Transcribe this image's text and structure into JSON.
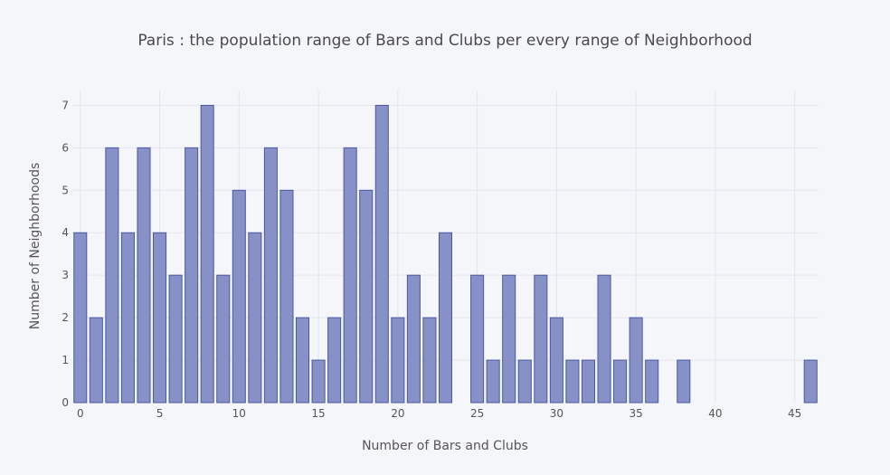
{
  "chart_data": {
    "type": "bar",
    "title": "Paris : the population range of Bars and Clubs per every range of Neighborhood",
    "xlabel": "Number of Bars and Clubs",
    "ylabel": "Number of Neighborhoods",
    "x": [
      0,
      1,
      2,
      3,
      4,
      5,
      6,
      7,
      8,
      9,
      10,
      11,
      12,
      13,
      14,
      15,
      16,
      17,
      18,
      19,
      20,
      21,
      22,
      23,
      25,
      26,
      27,
      28,
      29,
      30,
      31,
      32,
      33,
      34,
      35,
      36,
      38,
      46
    ],
    "values": [
      4,
      2,
      6,
      4,
      6,
      4,
      3,
      6,
      7,
      3,
      5,
      4,
      6,
      5,
      2,
      1,
      2,
      6,
      5,
      7,
      2,
      3,
      2,
      4,
      3,
      1,
      3,
      1,
      3,
      2,
      1,
      1,
      3,
      1,
      2,
      1,
      1,
      1
    ],
    "xlim": [
      -0.5,
      46.5
    ],
    "ylim": [
      0,
      7.35
    ],
    "x_ticks": [
      0,
      5,
      10,
      15,
      20,
      25,
      30,
      35,
      40,
      45
    ],
    "y_ticks": [
      0,
      1,
      2,
      3,
      4,
      5,
      6,
      7
    ],
    "grid": true,
    "colors": {
      "bar_fill": "#8791c8",
      "bar_stroke": "#4a58a0",
      "background": "#f5f6fa"
    }
  }
}
